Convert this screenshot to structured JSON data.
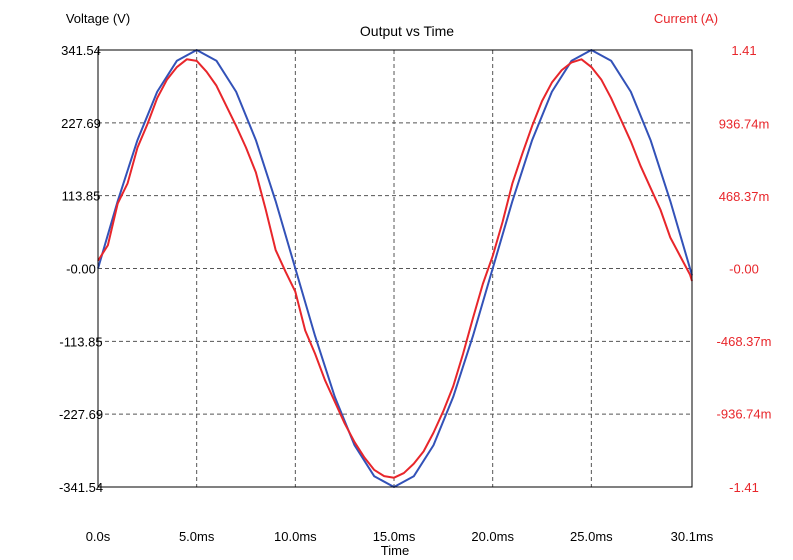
{
  "chart_data": {
    "type": "line",
    "title": "Output vs Time",
    "xlabel": "Time",
    "ylabel_left": "Voltage (V)",
    "ylabel_right": "Current (A)",
    "xlim": [
      0,
      30.1
    ],
    "ylim_left": [
      -341.54,
      341.54
    ],
    "ylim_right": [
      -1.41,
      1.41
    ],
    "grid": true,
    "x_ticks": [
      {
        "value": 0,
        "label": "0.0s"
      },
      {
        "value": 5,
        "label": "5.0ms"
      },
      {
        "value": 10,
        "label": "10.0ms"
      },
      {
        "value": 15,
        "label": "15.0ms"
      },
      {
        "value": 20,
        "label": "20.0ms"
      },
      {
        "value": 25,
        "label": "25.0ms"
      },
      {
        "value": 30.1,
        "label": "30.1ms"
      }
    ],
    "y_left_ticks": [
      {
        "value": 341.54,
        "label": "341.54"
      },
      {
        "value": 227.69,
        "label": "227.69"
      },
      {
        "value": 113.85,
        "label": "113.85"
      },
      {
        "value": 0,
        "label": "-0.00"
      },
      {
        "value": -113.85,
        "label": "-113.85"
      },
      {
        "value": -227.69,
        "label": "-227.69"
      },
      {
        "value": -341.54,
        "label": "-341.54"
      }
    ],
    "y_right_ticks": [
      {
        "value": 1.41,
        "label": "1.41"
      },
      {
        "value": 0.93674,
        "label": "936.74m"
      },
      {
        "value": 0.46837,
        "label": "468.37m"
      },
      {
        "value": 0,
        "label": "-0.00"
      },
      {
        "value": -0.46837,
        "label": "-468.37m"
      },
      {
        "value": -0.93674,
        "label": "-936.74m"
      },
      {
        "value": -1.41,
        "label": "-1.41"
      }
    ],
    "series": [
      {
        "axis": "left",
        "color": "#3352b8",
        "x": [
          0,
          1,
          2,
          3,
          4,
          5,
          6,
          7,
          8,
          9,
          10,
          11,
          12,
          13,
          14,
          15,
          16,
          17,
          18,
          19,
          20,
          21,
          22,
          23,
          24,
          25,
          26,
          27,
          28,
          29,
          30,
          30.1
        ],
        "y": [
          0,
          105.5,
          200.7,
          276.3,
          324.8,
          341.5,
          324.8,
          276.3,
          200.7,
          105.5,
          0,
          -105.5,
          -200.7,
          -276.3,
          -324.8,
          -341.5,
          -324.8,
          -276.3,
          -200.7,
          -105.5,
          0,
          105.5,
          200.7,
          276.3,
          324.8,
          341.5,
          324.8,
          276.3,
          200.7,
          105.5,
          0,
          -10.7
        ]
      },
      {
        "axis": "right",
        "color": "#e8262b",
        "x": [
          0,
          0.5,
          1,
          1.5,
          2,
          2.5,
          3,
          3.5,
          4,
          4.5,
          5,
          5.5,
          6,
          6.5,
          7,
          7.5,
          8,
          8.5,
          9,
          9.5,
          10,
          10.5,
          11,
          11.5,
          12,
          12.5,
          13,
          13.5,
          14,
          14.5,
          15,
          15.5,
          16,
          16.5,
          17,
          17.5,
          18,
          18.5,
          19,
          19.5,
          20,
          20.5,
          21,
          21.5,
          22,
          22.5,
          23,
          23.5,
          24,
          24.5,
          25,
          25.5,
          26,
          26.5,
          27,
          27.5,
          28,
          28.5,
          29,
          29.5,
          30,
          30.1
        ],
        "y": [
          0.05,
          0.15,
          0.42,
          0.55,
          0.78,
          0.93,
          1.1,
          1.22,
          1.3,
          1.35,
          1.34,
          1.27,
          1.18,
          1.05,
          0.92,
          0.78,
          0.62,
          0.38,
          0.12,
          -0.02,
          -0.15,
          -0.4,
          -0.55,
          -0.72,
          -0.86,
          -1.0,
          -1.12,
          -1.22,
          -1.3,
          -1.34,
          -1.35,
          -1.32,
          -1.26,
          -1.18,
          -1.06,
          -0.92,
          -0.76,
          -0.55,
          -0.32,
          -0.1,
          0.08,
          0.3,
          0.55,
          0.74,
          0.92,
          1.08,
          1.2,
          1.28,
          1.33,
          1.35,
          1.3,
          1.22,
          1.1,
          0.96,
          0.82,
          0.66,
          0.52,
          0.38,
          0.2,
          0.08,
          -0.04,
          -0.08
        ]
      }
    ]
  }
}
